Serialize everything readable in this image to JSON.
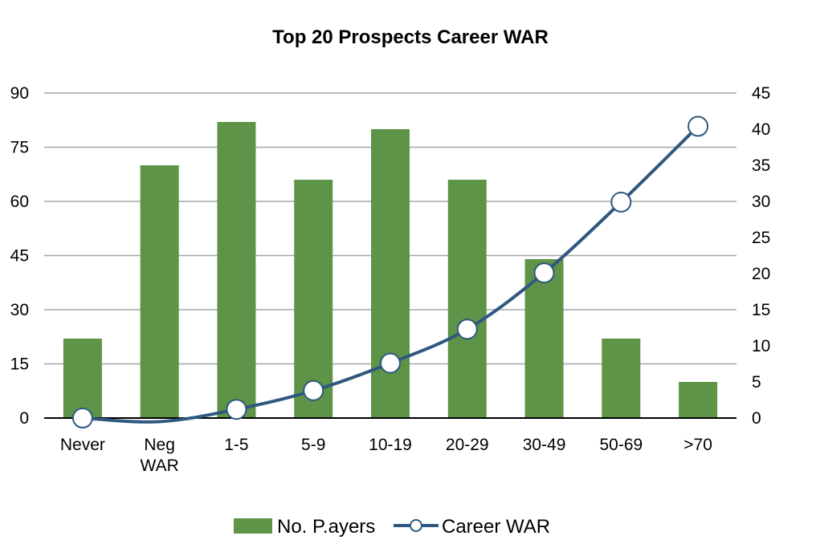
{
  "chart_data": {
    "type": "bar",
    "title": "Top 20 Prospects Career WAR",
    "categories": [
      "Never",
      "Neg WAR",
      "1-5",
      "5-9",
      "10-19",
      "20-29",
      "30-49",
      "50-69",
      ">70"
    ],
    "category_lines": [
      [
        "Never"
      ],
      [
        "Neg",
        "WAR"
      ],
      [
        "1-5"
      ],
      [
        "5-9"
      ],
      [
        "10-19"
      ],
      [
        "20-29"
      ],
      [
        "30-49"
      ],
      [
        "50-69"
      ],
      [
        ">70"
      ]
    ],
    "series": [
      {
        "name": "No. P.ayers",
        "type": "bar",
        "axis": "left",
        "color": "#5e9447",
        "values": [
          22,
          70,
          82,
          66,
          80,
          66,
          44,
          22,
          10
        ]
      },
      {
        "name": "Career WAR",
        "type": "line",
        "axis": "right",
        "color": "#2f5880",
        "marker_fill": "#ffffff",
        "values": [
          0,
          -0.5,
          1.2,
          3.8,
          7.6,
          12.3,
          20.1,
          29.9,
          40.4
        ]
      }
    ],
    "y_left": {
      "min": 0,
      "max": 90,
      "ticks": [
        0,
        15,
        30,
        45,
        60,
        75,
        90
      ]
    },
    "y_right": {
      "min": 0,
      "max": 45,
      "ticks": [
        0,
        5,
        10,
        15,
        20,
        25,
        30,
        35,
        40,
        45
      ]
    },
    "grid": true,
    "gridline_color": "#a6a6a6",
    "legend_position": "bottom"
  }
}
